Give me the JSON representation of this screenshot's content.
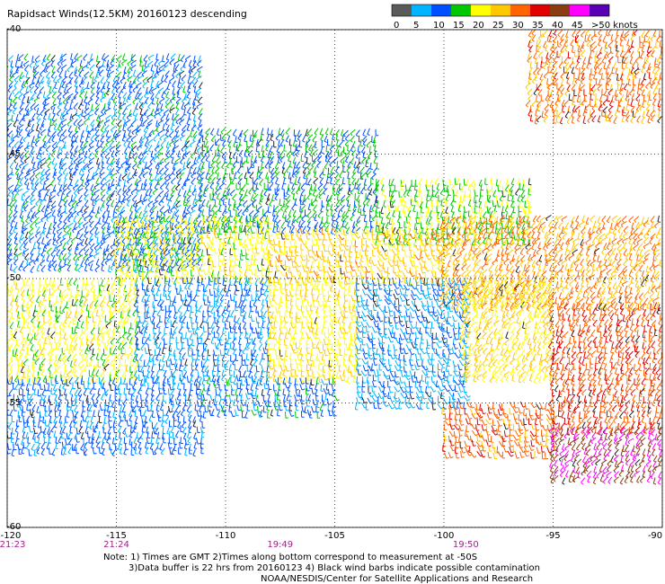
{
  "title": "Rapidsact Winds(12.5KM) 20160123 descending",
  "colorbar": {
    "labels": [
      "0",
      "5",
      "10",
      "15",
      "20",
      "25",
      "30",
      "35",
      "40",
      "45",
      ">50 knots"
    ],
    "colors": [
      "#5a5a5a",
      "#00b4ff",
      "#0050ff",
      "#00c800",
      "#ffff00",
      "#ffc800",
      "#ff6400",
      "#e00000",
      "#8c3c14",
      "#ff00ff",
      "#5a00b4"
    ]
  },
  "notes": [
    "Note: 1) Times are GMT 2)Times along bottom correspond to measurement at -50S",
    "3)Data buffer is 22 hrs from 20160123 4) Black wind barbs indicate possible contamination",
    "NOAA/NESDIS/Center for Satellite Applications and Research"
  ],
  "chart_data": {
    "type": "heatmap",
    "title": "Rapidsact Winds(12.5KM) 20160123 descending",
    "xlabel": "",
    "ylabel": "",
    "xlim": [
      -120,
      -90
    ],
    "ylim": [
      -60,
      -40
    ],
    "x_ticks": [
      {
        "value": -120,
        "label": "-120"
      },
      {
        "value": -115,
        "label": "-115"
      },
      {
        "value": -110,
        "label": "-110"
      },
      {
        "value": -105,
        "label": "-105"
      },
      {
        "value": -100,
        "label": "-100"
      },
      {
        "value": -95,
        "label": "-95"
      },
      {
        "value": -90,
        "label": "-90"
      }
    ],
    "y_ticks": [
      {
        "value": -40,
        "label": "-40"
      },
      {
        "value": -45,
        "label": "-45"
      },
      {
        "value": -50,
        "label": "-50"
      },
      {
        "value": -55,
        "label": "-55"
      },
      {
        "value": -60,
        "label": "-60"
      }
    ],
    "time_labels": [
      {
        "lon": -120,
        "label": "21:23",
        "color": "#a0208c"
      },
      {
        "lon": -115,
        "label": "21:24",
        "color": "#a0208c"
      },
      {
        "lon": -107.5,
        "label": "19:49",
        "color": "#a0208c"
      },
      {
        "lon": -99,
        "label": "19:50",
        "color": "#a0208c"
      }
    ],
    "grid": true,
    "colorbar_units": "knots",
    "colorbar_range": [
      0,
      50
    ],
    "wind_regions": [
      {
        "lon": [
          -120,
          -111
        ],
        "lat": [
          -49.5,
          -41
        ],
        "speed_kn": 12
      },
      {
        "lon": [
          -111,
          -103
        ],
        "lat": [
          -48,
          -44
        ],
        "speed_kn": 15
      },
      {
        "lon": [
          -103,
          -96
        ],
        "lat": [
          -48.5,
          -46
        ],
        "speed_kn": 19
      },
      {
        "lon": [
          -115,
          -108
        ],
        "lat": [
          -50,
          -47.5
        ],
        "speed_kn": 22
      },
      {
        "lon": [
          -108,
          -100
        ],
        "lat": [
          -50,
          -48
        ],
        "speed_kn": 27
      },
      {
        "lon": [
          -100,
          -90
        ],
        "lat": [
          -51,
          -47.5
        ],
        "speed_kn": 30
      },
      {
        "lon": [
          -120,
          -114
        ],
        "lat": [
          -54,
          -50
        ],
        "speed_kn": 22
      },
      {
        "lon": [
          -114,
          -108
        ],
        "lat": [
          -54,
          -50
        ],
        "speed_kn": 10
      },
      {
        "lon": [
          -108,
          -104
        ],
        "lat": [
          -54,
          -50
        ],
        "speed_kn": 24
      },
      {
        "lon": [
          -104,
          -99
        ],
        "lat": [
          -55,
          -50
        ],
        "speed_kn": 9
      },
      {
        "lon": [
          -99,
          -95
        ],
        "lat": [
          -54,
          -50
        ],
        "speed_kn": 25
      },
      {
        "lon": [
          -95,
          -90
        ],
        "lat": [
          -56,
          -51
        ],
        "speed_kn": 34
      },
      {
        "lon": [
          -120,
          -111
        ],
        "lat": [
          -57,
          -54
        ],
        "speed_kn": 11
      },
      {
        "lon": [
          -111,
          -105
        ],
        "lat": [
          -55.5,
          -54
        ],
        "speed_kn": 12
      },
      {
        "lon": [
          -100,
          -95
        ],
        "lat": [
          -57,
          -55
        ],
        "speed_kn": 33
      },
      {
        "lon": [
          -95,
          -90
        ],
        "lat": [
          -58,
          -56
        ],
        "speed_kn": 45
      },
      {
        "lon": [
          -96,
          -90
        ],
        "lat": [
          -43.5,
          -40
        ],
        "speed_kn": 32
      }
    ]
  }
}
